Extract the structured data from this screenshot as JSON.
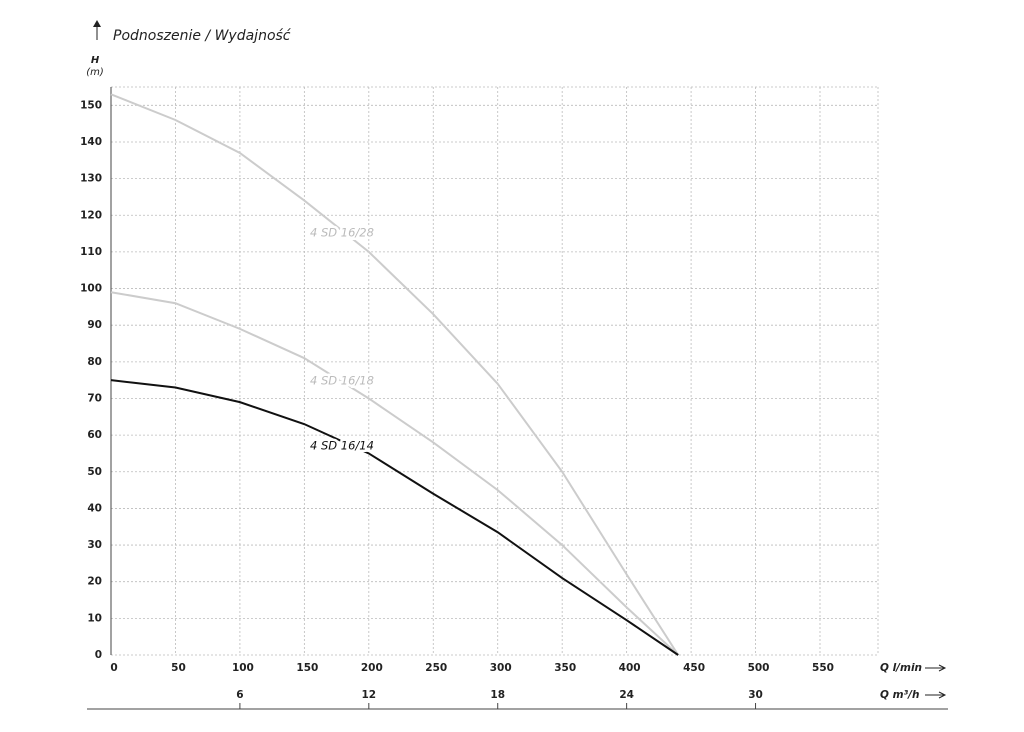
{
  "chart_data": {
    "type": "line",
    "title": "Podnoszenie / Wydajność",
    "y_label": "H",
    "y_unit": "(m)",
    "x_label": "Q l/min",
    "x2_label": "Q m³/h",
    "x": [
      0,
      50,
      100,
      150,
      200,
      250,
      300,
      350,
      400,
      440
    ],
    "series": [
      {
        "name": "4 SD 16/28",
        "color": "#cccccc",
        "values": [
          153,
          146,
          137,
          124,
          110,
          93,
          74,
          50,
          22,
          0
        ]
      },
      {
        "name": "4 SD 16/18",
        "color": "#cccccc",
        "values": [
          99,
          96,
          89,
          81,
          70,
          58,
          45,
          30,
          13,
          0
        ]
      },
      {
        "name": "4 SD 16/14",
        "color": "#111111",
        "values": [
          75,
          73,
          69,
          63,
          55,
          44,
          33.5,
          21,
          9.5,
          0
        ]
      }
    ],
    "xlim": [
      0,
      595
    ],
    "xticks": [
      0,
      50,
      100,
      150,
      200,
      250,
      300,
      350,
      400,
      450,
      500,
      550
    ],
    "x2lim": [
      0,
      35.7
    ],
    "x2ticks": [
      6,
      12,
      18,
      24,
      30
    ],
    "ylim": [
      0,
      155
    ],
    "yticks": [
      0,
      10,
      20,
      30,
      40,
      50,
      60,
      70,
      80,
      90,
      100,
      110,
      120,
      130,
      140,
      150
    ],
    "grid": true
  }
}
